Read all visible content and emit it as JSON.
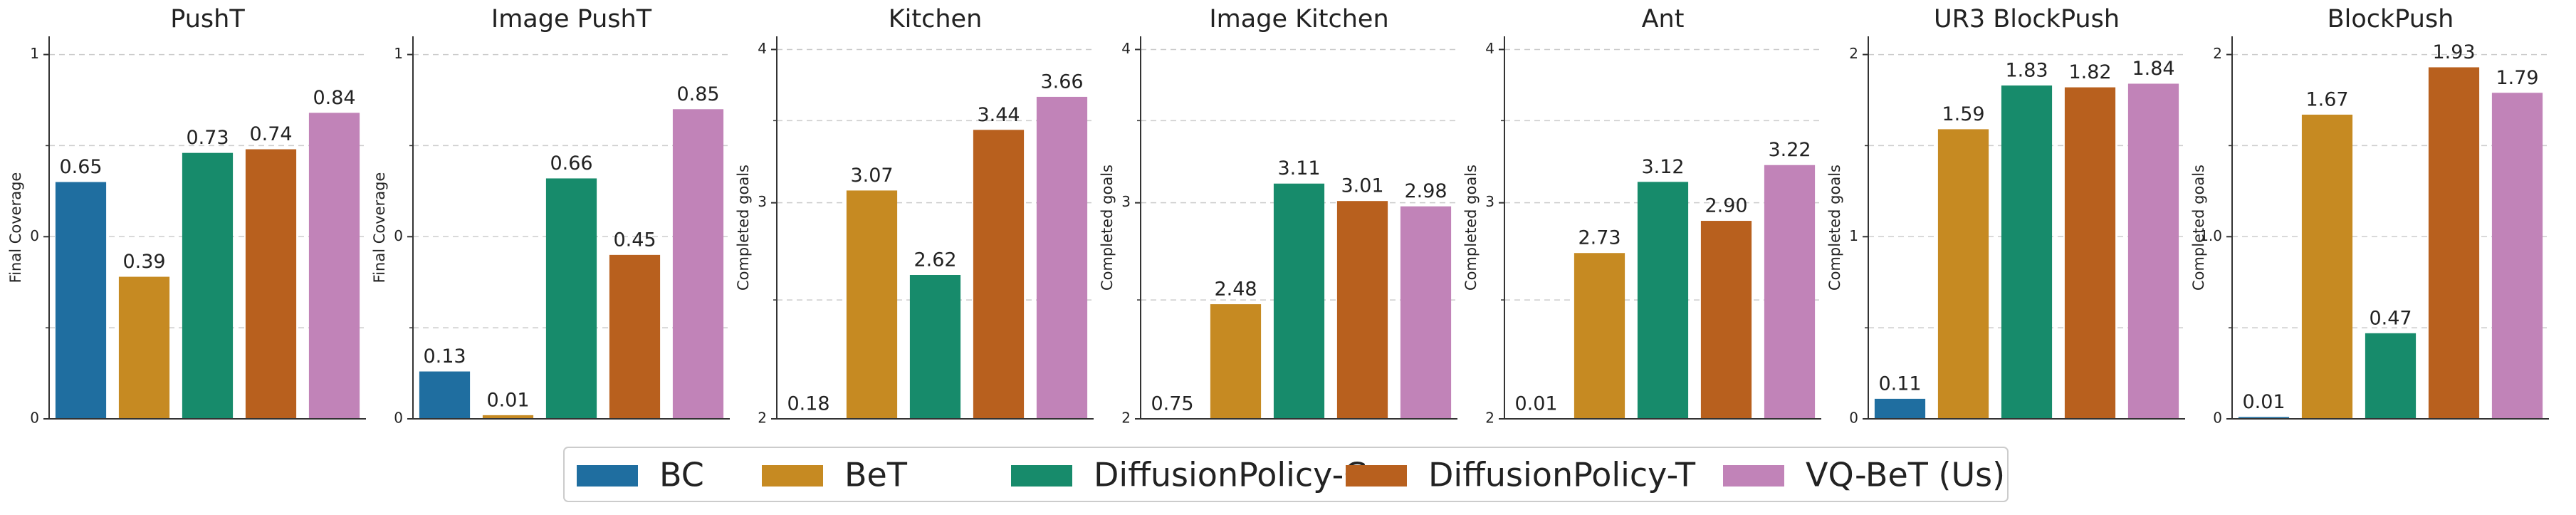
{
  "legend": {
    "entries": [
      {
        "name": "BC",
        "color": "#1f6ea0"
      },
      {
        "name": "BeT",
        "color": "#c68a22"
      },
      {
        "name": "DiffusionPolicy-C",
        "color": "#178b6b"
      },
      {
        "name": "DiffusionPolicy-T",
        "color": "#b8601e"
      },
      {
        "name": "VQ-BeT (Us)",
        "color": "#c183b8"
      }
    ]
  },
  "chart_data": [
    {
      "type": "bar",
      "title": "PushT",
      "ylabel": "Final Coverage",
      "values": [
        0.65,
        0.39,
        0.73,
        0.74,
        0.84
      ],
      "value_labels": [
        "0.65",
        "0.39",
        "0.73",
        "0.74",
        "0.84"
      ],
      "ylim": [
        0,
        1.05
      ],
      "yticks": [
        0,
        {
          "value": 0.5,
          "label": "0"
        },
        1
      ],
      "yminor": [
        0.25,
        0.75
      ],
      "log": false
    },
    {
      "type": "bar",
      "title": "Image PushT",
      "ylabel": "Final Coverage",
      "values": [
        0.13,
        0.01,
        0.66,
        0.45,
        0.85
      ],
      "value_labels": [
        "0.13",
        "0.01",
        "0.66",
        "0.45",
        "0.85"
      ],
      "ylim": [
        0,
        1.05
      ],
      "yticks": [
        0,
        {
          "value": 0.5,
          "label": "0"
        },
        1
      ],
      "yminor": [
        0.25,
        0.75
      ],
      "log": false
    },
    {
      "type": "bar",
      "title": "Kitchen",
      "ylabel": "Completed goals",
      "values": [
        0.18,
        3.07,
        2.62,
        3.44,
        3.66
      ],
      "value_labels": [
        "0.18",
        "3.07",
        "2.62",
        "3.44",
        "3.66"
      ],
      "ylim": [
        2,
        4.1
      ],
      "yticks": [
        2,
        3,
        4
      ],
      "yminor": [
        2.5,
        3.5
      ],
      "log": true
    },
    {
      "type": "bar",
      "title": "Image Kitchen",
      "ylabel": "Completed goals",
      "values": [
        0.75,
        2.48,
        3.11,
        3.01,
        2.98
      ],
      "value_labels": [
        "0.75",
        "2.48",
        "3.11",
        "3.01",
        "2.98"
      ],
      "ylim": [
        2,
        4.1
      ],
      "yticks": [
        2,
        3,
        4
      ],
      "yminor": [
        2.5,
        3.5
      ],
      "log": true
    },
    {
      "type": "bar",
      "title": "Ant",
      "ylabel": "Completed goals",
      "values": [
        0.01,
        2.73,
        3.12,
        2.9,
        3.22
      ],
      "value_labels": [
        "0.01",
        "2.73",
        "3.12",
        "2.90",
        "3.22"
      ],
      "ylim": [
        2,
        4.1
      ],
      "yticks": [
        2,
        3,
        4
      ],
      "yminor": [
        2.5,
        3.5
      ],
      "log": true
    },
    {
      "type": "bar",
      "title": "UR3 BlockPush",
      "ylabel": "Completed goals",
      "values": [
        0.11,
        1.59,
        1.83,
        1.82,
        1.84
      ],
      "value_labels": [
        "0.11",
        "1.59",
        "1.83",
        "1.82",
        "1.84"
      ],
      "ylim": [
        0,
        2.1
      ],
      "yticks": [
        0,
        1,
        2
      ],
      "yminor": [
        0.5,
        1.5
      ],
      "log": false
    },
    {
      "type": "bar",
      "title": "BlockPush",
      "ylabel": "Completed goals",
      "values": [
        0.01,
        1.67,
        0.47,
        1.93,
        1.79
      ],
      "value_labels": [
        "0.01",
        "1.67",
        "0.47",
        "1.93",
        "1.79"
      ],
      "ylim": [
        0,
        2.1
      ],
      "yticks": [
        0,
        {
          "value": 1,
          "label": "1.0"
        },
        2
      ],
      "yminor": [
        0.5,
        1.5
      ],
      "log": false
    }
  ]
}
